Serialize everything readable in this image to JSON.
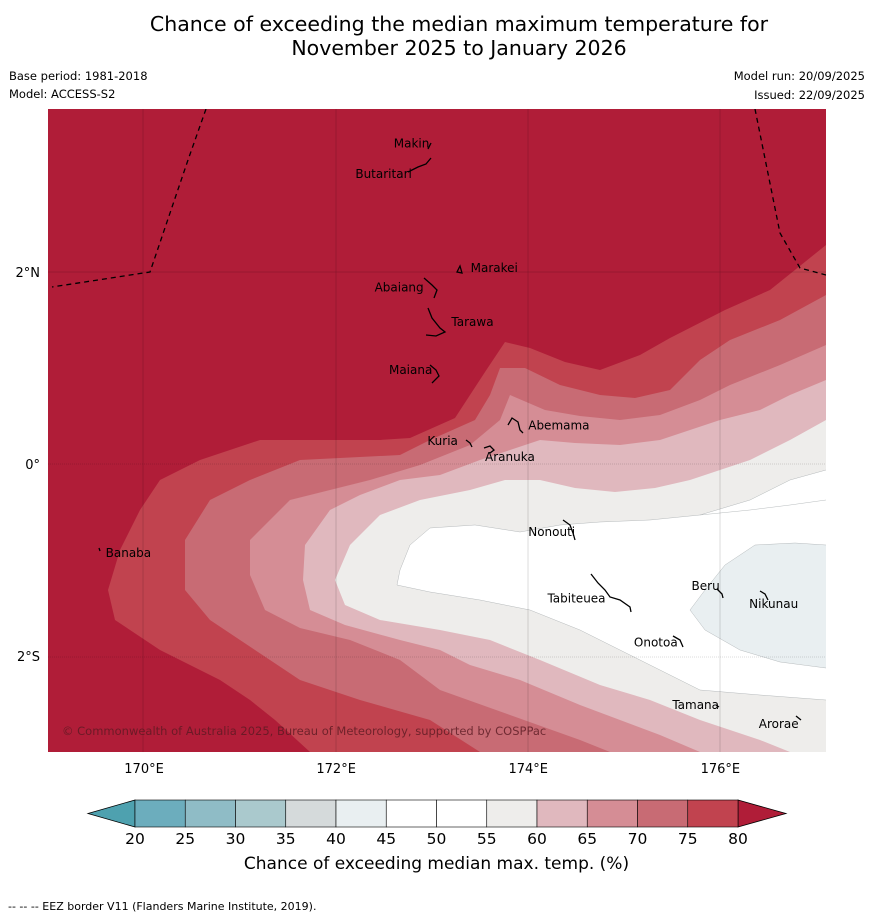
{
  "title": {
    "line1": "Chance of exceeding the median maximum temperature for",
    "line2": "November 2025 to January 2026"
  },
  "header": {
    "base_period": "Base period: 1981-2018",
    "model": "Model: ACCESS-S2",
    "model_run": "Model run: 20/09/2025",
    "issued": "Issued: 22/09/2025"
  },
  "map": {
    "lon_range": [
      169,
      177.1
    ],
    "lat_range": [
      -3,
      3.7
    ],
    "lon_ticks": [
      {
        "value": 170,
        "label": "170°E"
      },
      {
        "value": 172,
        "label": "172°E"
      },
      {
        "value": 174,
        "label": "174°E"
      },
      {
        "value": 176,
        "label": "176°E"
      }
    ],
    "lat_ticks": [
      {
        "value": 2,
        "label": "2°N"
      },
      {
        "value": 0,
        "label": "0°"
      },
      {
        "value": -2,
        "label": "2°S"
      }
    ],
    "islands": [
      {
        "name": "Makin",
        "lon": 172.6,
        "lat": 3.3
      },
      {
        "name": "Butaritari",
        "lon": 172.2,
        "lat": 2.98
      },
      {
        "name": "Marakei",
        "lon": 173.4,
        "lat": 2.0
      },
      {
        "name": "Abaiang",
        "lon": 172.4,
        "lat": 1.8
      },
      {
        "name": "Tarawa",
        "lon": 173.2,
        "lat": 1.44
      },
      {
        "name": "Maiana",
        "lon": 172.55,
        "lat": 0.94
      },
      {
        "name": "Abemama",
        "lon": 174.0,
        "lat": 0.36
      },
      {
        "name": "Kuria",
        "lon": 172.95,
        "lat": 0.2
      },
      {
        "name": "Aranuka",
        "lon": 173.55,
        "lat": 0.03
      },
      {
        "name": "Banaba",
        "lon": 169.6,
        "lat": -0.97
      },
      {
        "name": "Nonouti",
        "lon": 174.0,
        "lat": -0.75
      },
      {
        "name": "Tabiteuea",
        "lon": 174.2,
        "lat": -1.44
      },
      {
        "name": "Beru",
        "lon": 175.7,
        "lat": -1.31
      },
      {
        "name": "Nikunau",
        "lon": 176.3,
        "lat": -1.5
      },
      {
        "name": "Onotoa",
        "lon": 175.1,
        "lat": -1.9
      },
      {
        "name": "Tamana",
        "lon": 175.5,
        "lat": -2.55
      },
      {
        "name": "Arorae",
        "lon": 176.4,
        "lat": -2.75
      }
    ],
    "copyright": "© Commonwealth of Australia 2025, Bureau of Meteorology, supported by COSPPac"
  },
  "colorbar": {
    "ticks": [
      "20",
      "25",
      "30",
      "35",
      "40",
      "45",
      "50",
      "55",
      "60",
      "65",
      "70",
      "75",
      "80"
    ],
    "colors": [
      "#6cadbd",
      "#8fbcc6",
      "#aac9cd",
      "#d5dadb",
      "#e9eff1",
      "#ffffff",
      "#ffffff",
      "#eeedeb",
      "#e0b8be",
      "#d58d95",
      "#c86b74",
      "#c1434f"
    ],
    "under_color": "#4ea1af",
    "over_color": "#b01d38",
    "label": "Chance of exceeding median max. temp. (%)"
  },
  "footnote": "-- -- -- EEZ border V11 (Flanders Marine Institute, 2019)."
}
